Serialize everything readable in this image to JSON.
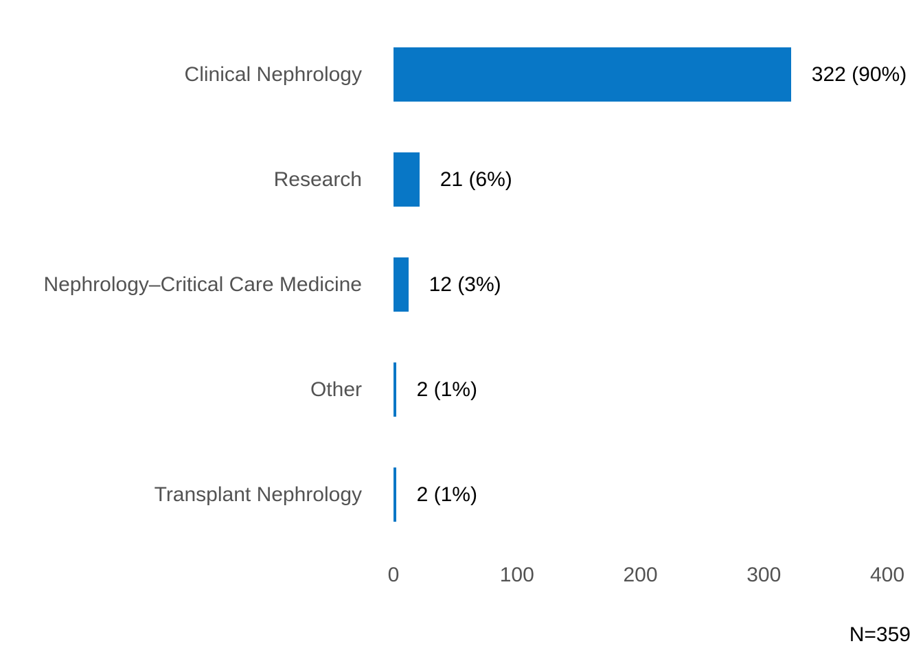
{
  "chart_data": {
    "type": "bar",
    "orientation": "horizontal",
    "title": "",
    "xlabel": "",
    "ylabel": "",
    "categories": [
      "Clinical Nephrology",
      "Research",
      "Nephrology–Critical Care Medicine",
      "Other",
      "Transplant Nephrology"
    ],
    "values": [
      322,
      21,
      12,
      2,
      2
    ],
    "value_labels": [
      "322 (90%)",
      "21 (6%)",
      "12 (3%)",
      "2 (1%)",
      "2 (1%)"
    ],
    "percentages": [
      90,
      6,
      3,
      1,
      1
    ],
    "x_ticks": [
      0,
      100,
      200,
      300,
      400
    ],
    "xlim": [
      0,
      400
    ],
    "grid": false,
    "legend": false,
    "footnote": "N=359",
    "total_n": 359,
    "colors": {
      "bar": "#0877C6",
      "category_label": "#535353",
      "tick_label": "#535353",
      "value_label": "#000000",
      "background": "#ffffff"
    }
  }
}
